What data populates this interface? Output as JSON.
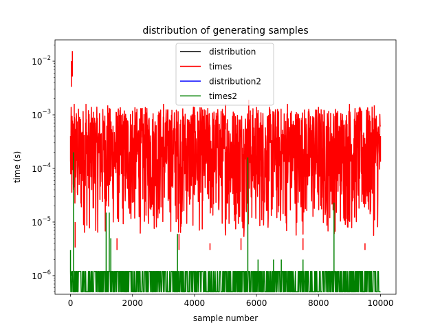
{
  "chart_data": {
    "type": "line",
    "title": "distribution of generating samples",
    "xlabel": "sample number",
    "ylabel": "time (s)",
    "xlim": [
      -500,
      10500
    ],
    "ylim": [
      4.5e-07,
      0.025
    ],
    "yscale": "log",
    "xticks": [
      0,
      2000,
      4000,
      6000,
      8000,
      10000
    ],
    "xtick_labels": [
      "0",
      "2000",
      "4000",
      "6000",
      "8000",
      "10000"
    ],
    "yticks": [
      1e-06,
      1e-05,
      0.0001,
      0.001,
      0.01
    ],
    "ytick_labels": [
      {
        "base": "10",
        "exp": "−6"
      },
      {
        "base": "10",
        "exp": "−5"
      },
      {
        "base": "10",
        "exp": "−4"
      },
      {
        "base": "10",
        "exp": "−3"
      },
      {
        "base": "10",
        "exp": "−2"
      }
    ],
    "grid": false,
    "legend_position": "upper center",
    "series": [
      {
        "name": "distribution",
        "color": "#000000",
        "points": []
      },
      {
        "name": "times",
        "color": "#ff0000",
        "points": [
          [
            0,
            0.0004
          ],
          [
            30,
            0.01
          ],
          [
            60,
            0.0155
          ],
          [
            90,
            0.00015
          ],
          [
            120,
            0.0016
          ],
          [
            150,
            1e-05
          ],
          [
            500,
            0.0016
          ],
          [
            800,
            3e-06
          ],
          [
            1200,
            0.0015
          ],
          [
            1500,
            5e-06
          ],
          [
            2000,
            0.0012
          ],
          [
            2500,
            3e-06
          ],
          [
            3000,
            0.0016
          ],
          [
            3500,
            6e-06
          ],
          [
            4000,
            0.0014
          ],
          [
            4500,
            4e-06
          ],
          [
            5000,
            0.0016
          ],
          [
            5500,
            5e-06
          ],
          [
            5750,
            0.0019
          ],
          [
            5800,
            3e-06
          ],
          [
            6000,
            0.0014
          ],
          [
            6500,
            3e-06
          ],
          [
            7000,
            0.0016
          ],
          [
            7500,
            5e-06
          ],
          [
            8000,
            0.0014
          ],
          [
            8500,
            3e-06
          ],
          [
            9000,
            0.0016
          ],
          [
            9500,
            4e-06
          ],
          [
            9800,
            0.0015
          ],
          [
            9900,
            3e-06
          ],
          [
            10000,
            0.0004
          ]
        ]
      },
      {
        "name": "distribution2",
        "color": "#0000ff",
        "points": []
      },
      {
        "name": "times2",
        "color": "#008000",
        "points": [
          [
            0,
            3e-06
          ],
          [
            30,
            1e-06
          ],
          [
            100,
            0.0002
          ],
          [
            150,
            7e-07
          ],
          [
            1150,
            1.5e-05
          ],
          [
            1250,
            1.5e-05
          ],
          [
            1300,
            5e-06
          ],
          [
            3450,
            6e-06
          ],
          [
            5720,
            0.00016
          ],
          [
            6050,
            2e-06
          ],
          [
            6550,
            2e-06
          ],
          [
            6800,
            2e-06
          ],
          [
            7500,
            2e-06
          ],
          [
            8500,
            2.3e-05
          ],
          [
            10000,
            1.2e-06
          ]
        ]
      }
    ]
  }
}
